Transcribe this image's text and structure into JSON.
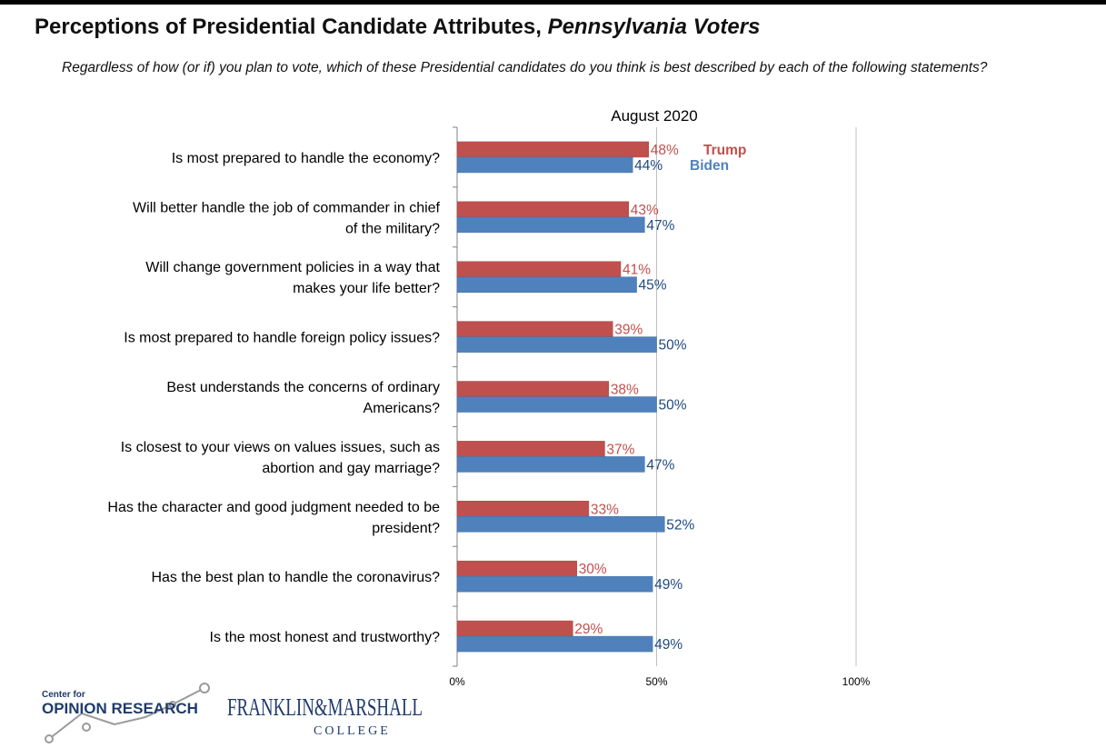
{
  "header": {
    "title_main": "Perceptions of Presidential Candidate Attributes,",
    "title_italic": "Pennsylvania Voters",
    "subtitle": "Regardless of how (or if) you plan to vote, which of these Presidential candidates do you think is best described by each of the following statements?"
  },
  "chart_data": {
    "type": "bar",
    "orientation": "horizontal",
    "title": "August 2020",
    "categories": [
      "Is most prepared to handle the economy?",
      "Will better handle the job of commander in chief of the military?",
      "Will change government policies in a way that makes your life better?",
      "Is most prepared to handle foreign policy issues?",
      "Best understands the concerns of ordinary Americans?",
      "Is closest to your views on values issues, such as abortion and gay marriage?",
      "Has the character and good judgment needed to be president?",
      "Has the best plan to handle the coronavirus?",
      "Is the most honest and trustworthy?"
    ],
    "series": [
      {
        "name": "Trump",
        "color": "#c0504d",
        "values": [
          48,
          43,
          41,
          39,
          38,
          37,
          33,
          30,
          29
        ]
      },
      {
        "name": "Biden",
        "color": "#4f81bd",
        "values": [
          44,
          47,
          45,
          50,
          50,
          47,
          52,
          49,
          49
        ]
      }
    ],
    "xlim": [
      0,
      100
    ],
    "x_ticks": [
      "0%",
      "50%",
      "100%"
    ],
    "value_suffix": "%",
    "legend": "inline next to first category bars",
    "grid": "vertical gridlines at 50% and 100%"
  },
  "logo": {
    "center_for": "Center for",
    "opinion_research": "OPINION RESEARCH",
    "franklin_marshall": "FRANKLIN&MARSHALL",
    "college": "COLLEGE"
  }
}
